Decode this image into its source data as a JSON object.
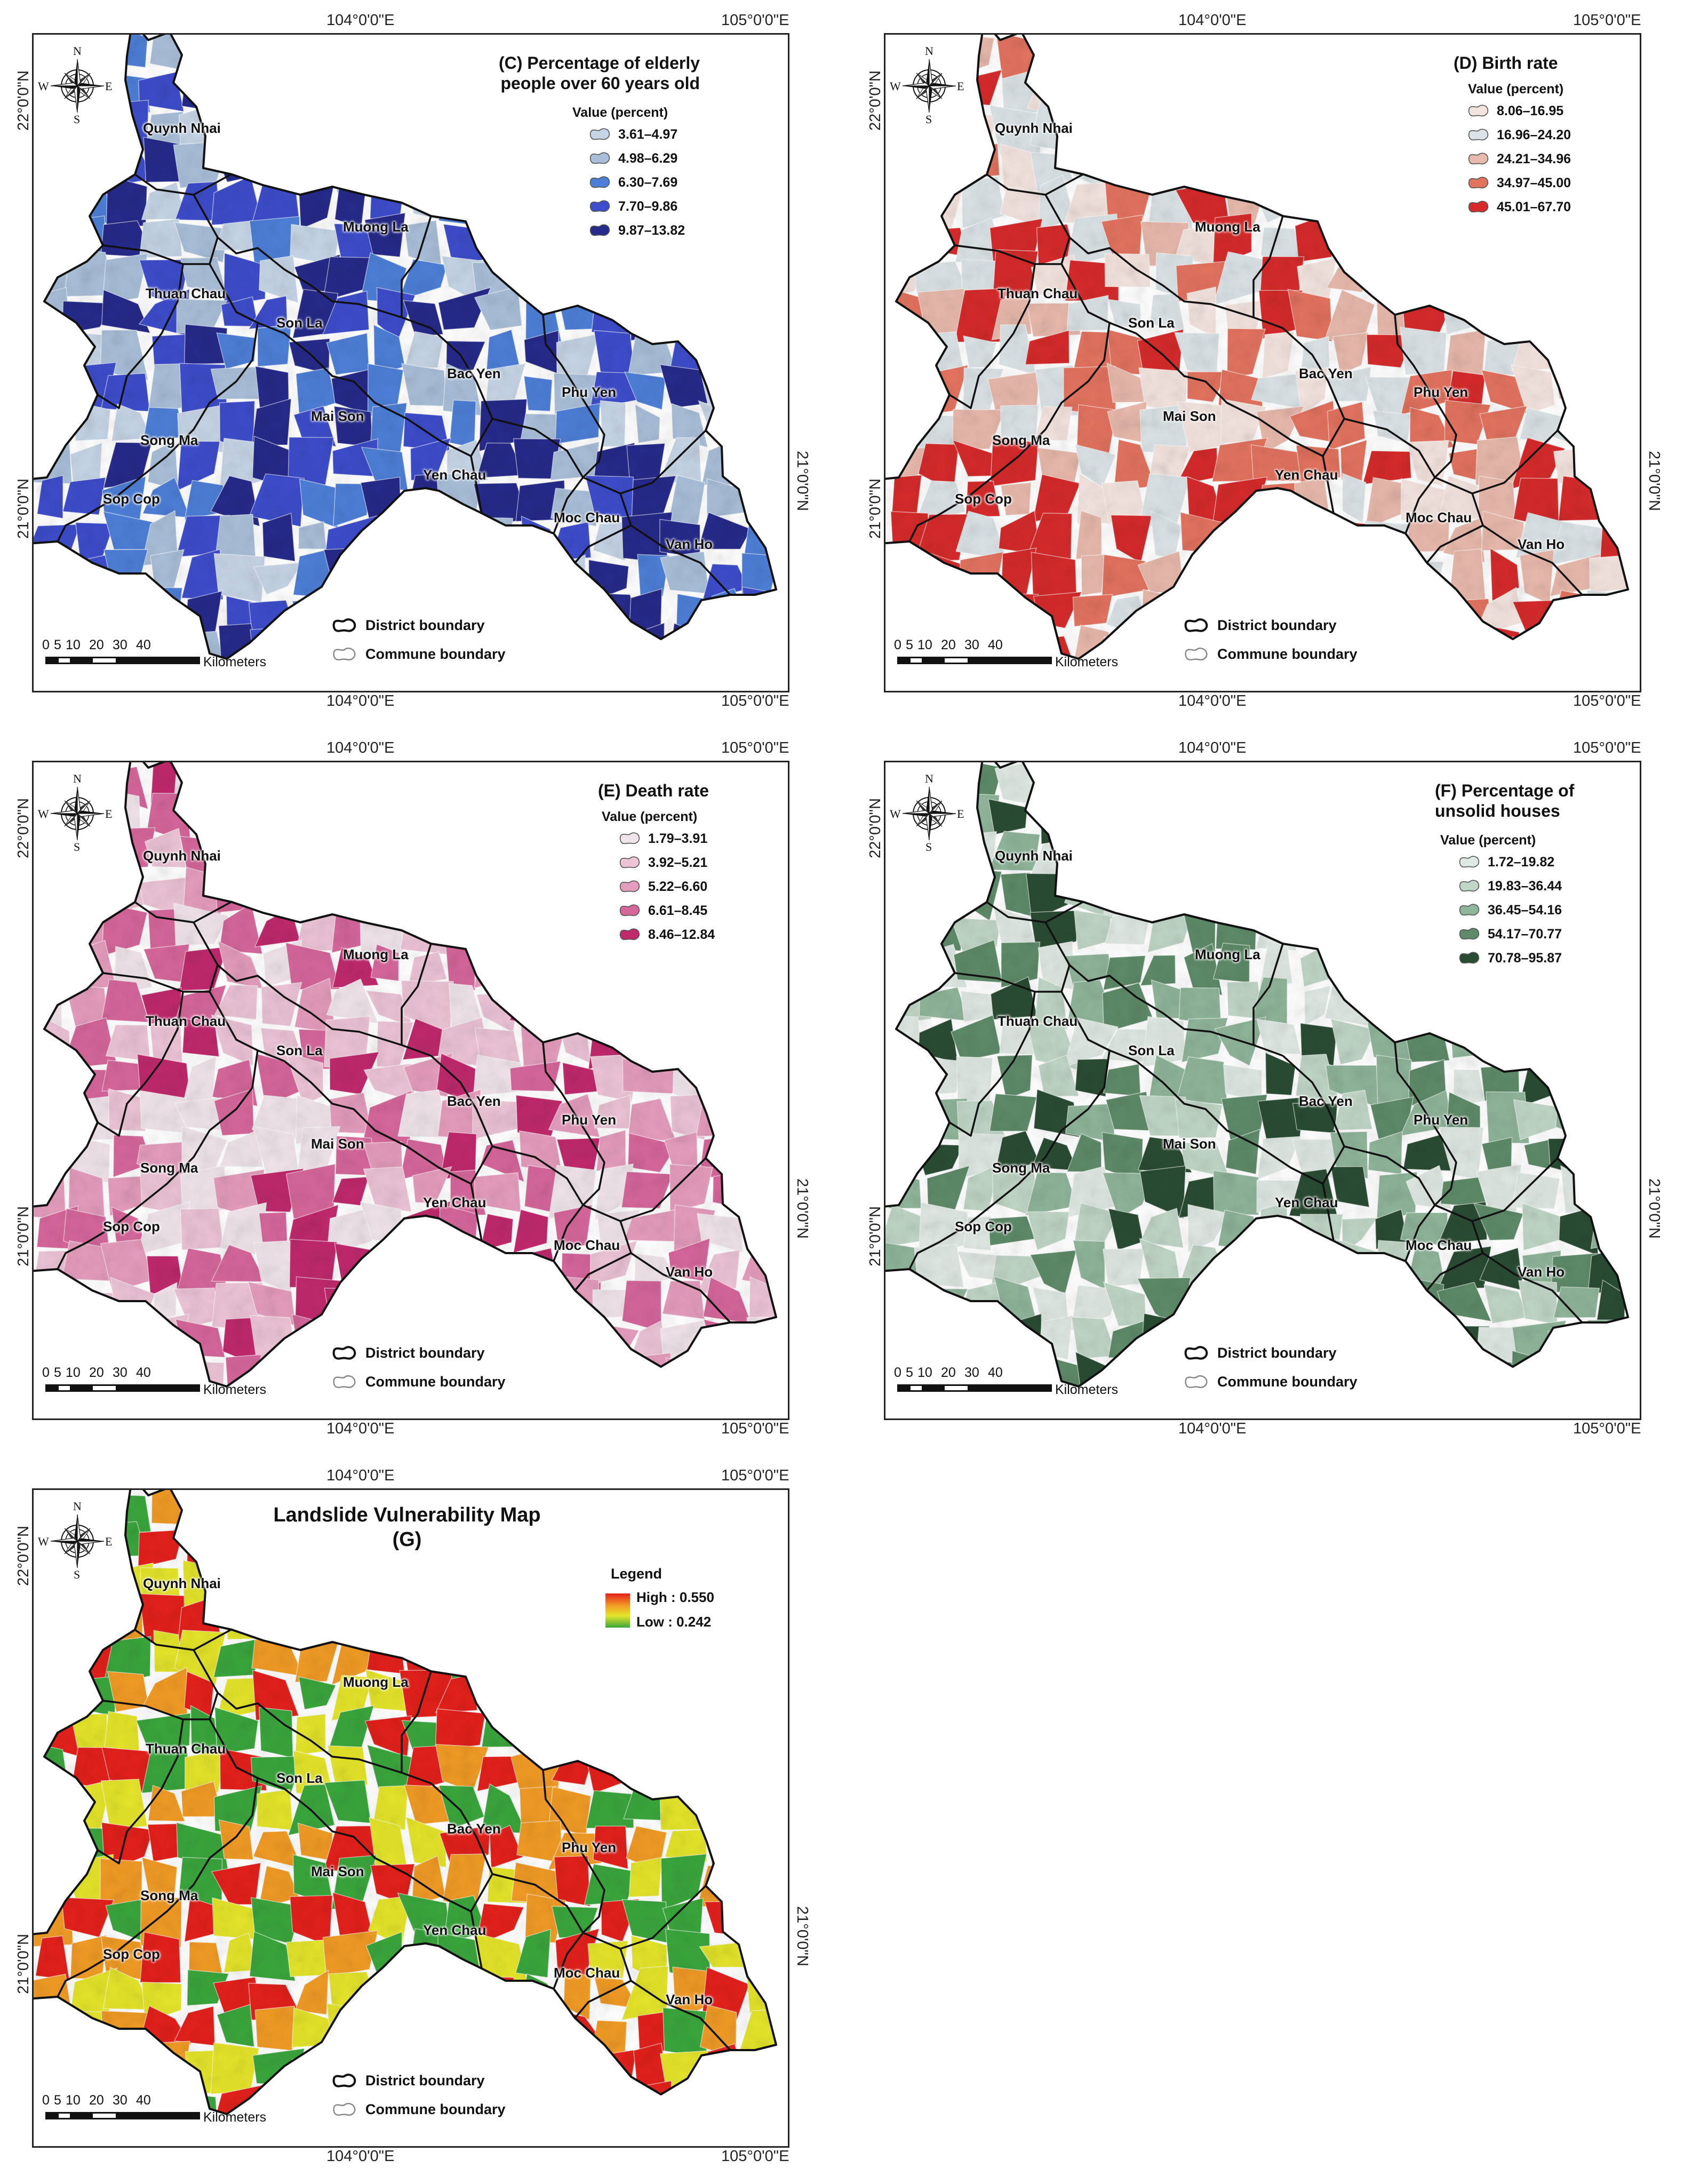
{
  "colors": {
    "C": [
      "#c6d5e6",
      "#a9bfd9",
      "#4d7fd8",
      "#3d4dcb",
      "#262a8a"
    ],
    "D": [
      "#f4e4df",
      "#dbe3e6",
      "#e8b9ac",
      "#e3735f",
      "#d62a2a"
    ],
    "E": [
      "#f0e4ea",
      "#ecc4d6",
      "#e59dbd",
      "#d6679b",
      "#c0296c"
    ],
    "F": [
      "#dfe8e2",
      "#c0d6c6",
      "#8fb59a",
      "#5e8b69",
      "#2a4c33"
    ],
    "G_ramp": [
      "#e4201b",
      "#f19b25",
      "#e5e52a",
      "#3aa63c"
    ]
  },
  "icons": [
    "north-arrow-icon",
    "district-boundary-icon",
    "commune-boundary-icon"
  ],
  "common": {
    "lon_left": "104°0'0\"E",
    "lon_right": "105°0'0\"E",
    "lat_top": "22°0'0\"N",
    "lat_bottom": "21°0'0\"N",
    "compass": {
      "n": "N",
      "s": "S",
      "e": "E",
      "w": "W"
    },
    "district_boundary": "District boundary",
    "commune_boundary": "Commune boundary",
    "scale": {
      "ticks": [
        "0",
        "5",
        "10",
        "20",
        "30",
        "40"
      ],
      "unit": "Kilometers"
    },
    "districts": {
      "quynh_nhai": "Quynh Nhai",
      "muong_la": "Muong La",
      "thuan_chau": "Thuan Chau",
      "son_la": "Son La",
      "bac_yen": "Bac Yen",
      "phu_yen": "Phu Yen",
      "song_ma": "Song Ma",
      "mai_son": "Mai Son",
      "yen_chau": "Yen Chau",
      "sop_cop": "Sop Cop",
      "moc_chau": "Moc Chau",
      "van_ho": "Van Ho"
    }
  },
  "maps": {
    "C": {
      "title_line1": "(C) Percentage of elderly",
      "title_line2": "people over 60 years old",
      "value_label": "Value (percent)",
      "classes": [
        "3.61–4.97",
        "4.98–6.29",
        "6.30–7.69",
        "7.70–9.86",
        "9.87–13.82"
      ]
    },
    "D": {
      "title_line1": "(D) Birth rate",
      "title_line2": "",
      "value_label": "Value (percent)",
      "classes": [
        "8.06–16.95",
        "16.96–24.20",
        "24.21–34.96",
        "34.97–45.00",
        "45.01–67.70"
      ]
    },
    "E": {
      "title_line1": "(E) Death rate",
      "title_line2": "",
      "value_label": "Value (percent)",
      "classes": [
        "1.79–3.91",
        "3.92–5.21",
        "5.22–6.60",
        "6.61–8.45",
        "8.46–12.84"
      ]
    },
    "F": {
      "title_line1": "(F) Percentage of",
      "title_line2": "unsolid houses",
      "value_label": "Value (percent)",
      "classes": [
        "1.72–19.82",
        "19.83–36.44",
        "36.45–54.16",
        "54.17–70.77",
        "70.78–95.87"
      ]
    },
    "G": {
      "title_line1": "Landslide Vulnerability Map",
      "title_line2": "(G)",
      "legend_label": "Legend",
      "high": "High : 0.550",
      "low": "Low : 0.242"
    }
  }
}
